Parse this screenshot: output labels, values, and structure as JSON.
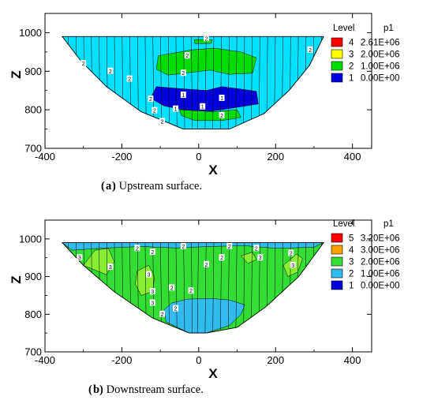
{
  "chart_data": [
    {
      "type": "contour",
      "panel": "a",
      "caption_letter": "a",
      "caption_text": " Upstream surface.",
      "xlabel": "X",
      "ylabel": "Z",
      "xlim": [
        -400,
        450
      ],
      "ylim": [
        700,
        1050
      ],
      "xticks": [
        -400,
        -200,
        0,
        200,
        400
      ],
      "yticks": [
        700,
        800,
        900,
        1000
      ],
      "legend": {
        "header_level": "Level",
        "header_var": "p1",
        "levels": [
          {
            "level": "4",
            "value": "2.61E+06",
            "color": "#ff0000"
          },
          {
            "level": "3",
            "value": "2.00E+06",
            "color": "#ffff00"
          },
          {
            "level": "2",
            "value": "1.00E+06",
            "color": "#00dd00"
          },
          {
            "level": "1",
            "value": "0.00E+00",
            "color": "#0000dd"
          }
        ]
      },
      "base_color": "#00e0ff",
      "outline": [
        [
          -355,
          990
        ],
        [
          325,
          990
        ],
        [
          288,
          915
        ],
        [
          235,
          850
        ],
        [
          170,
          790
        ],
        [
          80,
          750
        ],
        [
          -40,
          750
        ],
        [
          -150,
          795
        ],
        [
          -240,
          860
        ],
        [
          -305,
          925
        ]
      ],
      "regions": [
        {
          "color": "#00dd00",
          "points": [
            [
              -105,
              940
            ],
            [
              -20,
              955
            ],
            [
              40,
              960
            ],
            [
              110,
              950
            ],
            [
              150,
              935
            ],
            [
              140,
              895
            ],
            [
              80,
              892
            ],
            [
              30,
              903
            ],
            [
              -20,
              897
            ],
            [
              -80,
              890
            ],
            [
              -110,
              905
            ]
          ]
        },
        {
          "color": "#00dd00",
          "points": [
            [
              -12,
              982
            ],
            [
              35,
              982
            ],
            [
              32,
              972
            ],
            [
              -10,
              972
            ]
          ]
        },
        {
          "color": "#0000dd",
          "points": [
            [
              -110,
              860
            ],
            [
              -50,
              855
            ],
            [
              20,
              850
            ],
            [
              60,
              860
            ],
            [
              100,
              855
            ],
            [
              150,
              848
            ],
            [
              155,
              815
            ],
            [
              110,
              808
            ],
            [
              60,
              800
            ],
            [
              20,
              795
            ],
            [
              -40,
              800
            ],
            [
              -90,
              810
            ],
            [
              -125,
              830
            ]
          ]
        },
        {
          "color": "#00dd00",
          "points": [
            [
              -50,
              800
            ],
            [
              40,
              795
            ],
            [
              100,
              800
            ],
            [
              110,
              780
            ],
            [
              60,
              772
            ],
            [
              -10,
              772
            ],
            [
              -45,
              785
            ]
          ]
        }
      ],
      "contour_labels": [
        "2",
        "2",
        "2",
        "2",
        "2",
        "2",
        "2",
        "2",
        "2",
        "1",
        "1",
        "1",
        "1",
        "2",
        "2"
      ]
    },
    {
      "type": "contour",
      "panel": "b",
      "caption_letter": "b",
      "caption_text": " Downstream surface.",
      "xlabel": "X",
      "ylabel": "Z",
      "xlim": [
        -400,
        450
      ],
      "ylim": [
        700,
        1050
      ],
      "xticks": [
        -400,
        -200,
        0,
        200,
        400
      ],
      "yticks": [
        700,
        800,
        900,
        1000
      ],
      "legend": {
        "header_level": "Level",
        "header_var": "p1",
        "levels": [
          {
            "level": "5",
            "value": "3.20E+06",
            "color": "#ff0000"
          },
          {
            "level": "4",
            "value": "3.00E+06",
            "color": "#ffa000"
          },
          {
            "level": "3",
            "value": "2.00E+06",
            "color": "#33dd33"
          },
          {
            "level": "2",
            "value": "1.00E+06",
            "color": "#33bbee"
          },
          {
            "level": "1",
            "value": "0.00E+00",
            "color": "#0000dd"
          }
        ]
      },
      "base_color": "#33dd33",
      "outline": [
        [
          -355,
          990
        ],
        [
          325,
          990
        ],
        [
          260,
          900
        ],
        [
          175,
          820
        ],
        [
          100,
          765
        ],
        [
          20,
          750
        ],
        [
          -25,
          750
        ],
        [
          -120,
          790
        ],
        [
          -220,
          860
        ],
        [
          -300,
          930
        ]
      ],
      "regions": [
        {
          "color": "#33bbee",
          "points": [
            [
              -355,
              990
            ],
            [
              325,
              990
            ],
            [
              300,
              978
            ],
            [
              200,
              975
            ],
            [
              120,
              982
            ],
            [
              30,
              980
            ],
            [
              -60,
              976
            ],
            [
              -150,
              980
            ],
            [
              -260,
              975
            ],
            [
              -330,
              970
            ]
          ]
        },
        {
          "color": "#33bbee",
          "points": [
            [
              -90,
              812
            ],
            [
              -70,
              830
            ],
            [
              -30,
              840
            ],
            [
              30,
              842
            ],
            [
              80,
              838
            ],
            [
              120,
              825
            ],
            [
              110,
              800
            ],
            [
              80,
              770
            ],
            [
              20,
              750
            ],
            [
              -25,
              750
            ],
            [
              -85,
              780
            ]
          ]
        },
        {
          "color": "#88ee33",
          "points": [
            [
              -300,
              930
            ],
            [
              -270,
              970
            ],
            [
              -235,
              975
            ],
            [
              -220,
              940
            ],
            [
              -240,
              905
            ]
          ]
        },
        {
          "color": "#88ee33",
          "points": [
            [
              -160,
              915
            ],
            [
              -130,
              930
            ],
            [
              -115,
              900
            ],
            [
              -120,
              860
            ],
            [
              -150,
              850
            ],
            [
              -165,
              880
            ]
          ]
        },
        {
          "color": "#88ee33",
          "points": [
            [
              220,
              930
            ],
            [
              255,
              960
            ],
            [
              270,
              948
            ],
            [
              258,
              912
            ],
            [
              232,
              900
            ]
          ]
        },
        {
          "color": "#88ee33",
          "points": [
            [
              110,
              955
            ],
            [
              140,
              965
            ],
            [
              150,
              945
            ],
            [
              128,
              935
            ]
          ]
        }
      ],
      "contour_labels": [
        "2",
        "2",
        "2",
        "2",
        "2",
        "2",
        "2",
        "2",
        "2",
        "3",
        "3",
        "3",
        "3",
        "3",
        "3",
        "3",
        "2",
        "2",
        "2"
      ]
    }
  ]
}
